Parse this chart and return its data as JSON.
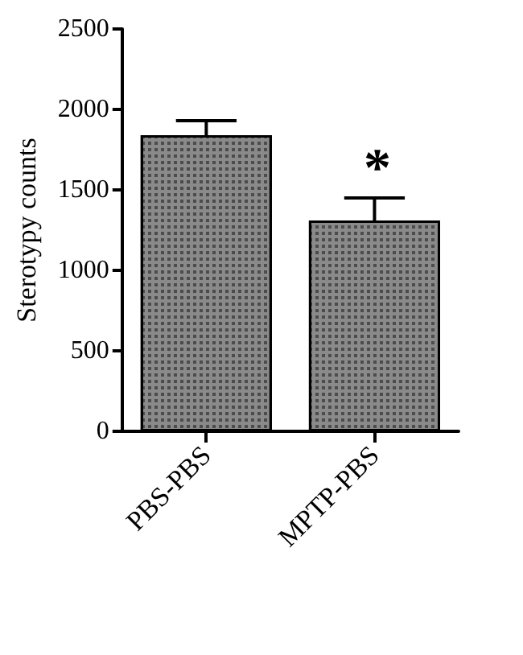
{
  "chart_data": {
    "type": "bar",
    "ylabel": "Sterotypy counts",
    "categories": [
      "PBS-PBS",
      "MPTP-PBS"
    ],
    "values": [
      1840,
      1310
    ],
    "errors": [
      90,
      140
    ],
    "color": "#8a8a8a",
    "ylim": [
      0,
      2500
    ],
    "yticks": [
      0,
      500,
      1000,
      1500,
      2000,
      2500
    ],
    "grid": false,
    "annotations": [
      "*"
    ]
  }
}
